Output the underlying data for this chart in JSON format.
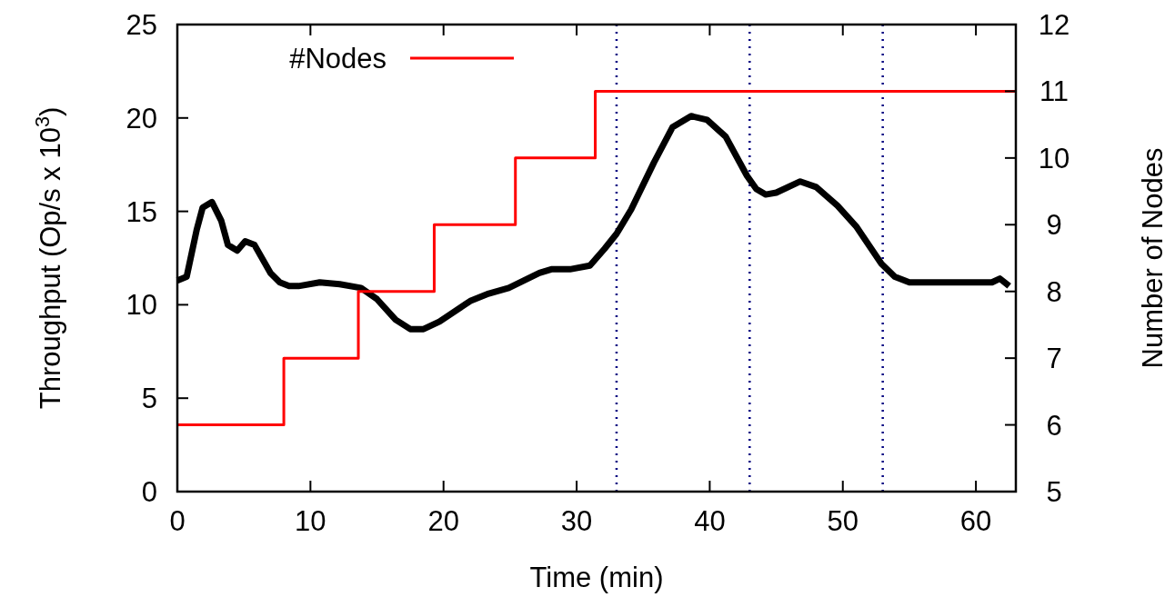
{
  "chart_data": {
    "type": "line",
    "xlabel": "Time (min)",
    "ylabel": "Throughput (Op/s x 10$^{3}$)",
    "y2label": "Number of Nodes",
    "xlim": [
      0,
      63
    ],
    "xticks": [
      0,
      10,
      20,
      30,
      40,
      50,
      60
    ],
    "ylim": [
      0,
      25
    ],
    "yticks": [
      0,
      5,
      10,
      15,
      20,
      25
    ],
    "y2lim": [
      5,
      12
    ],
    "y2ticks": [
      5,
      6,
      7,
      8,
      9,
      10,
      11,
      12
    ],
    "legend": "top left",
    "grid": false,
    "line_style": "solid",
    "marker": "none",
    "series": [
      {
        "color": "#000000",
        "x": [
          0,
          0.7,
          1.45,
          1.9,
          2.6,
          3.3,
          3.8,
          4.5,
          5.1,
          5.8,
          7,
          7.7,
          8.4,
          9.1,
          10.7,
          12.2,
          13.8,
          15,
          16.4,
          17.5,
          18.5,
          19.7,
          22,
          23.4,
          24.9,
          27.2,
          28.1,
          29.5,
          31,
          32.1,
          33,
          34.1,
          35.8,
          37.2,
          38.6,
          39.8,
          41.2,
          42.8,
          43.5,
          44.2,
          45,
          46.8,
          48,
          49.6,
          51,
          52.9,
          53.9,
          55,
          57.4,
          59.8,
          61.2,
          61.8,
          62.5
        ],
        "values": [
          11.3,
          11.5,
          14,
          15.2,
          15.5,
          14.5,
          13.2,
          12.9,
          13.4,
          13.2,
          11.7,
          11.2,
          11,
          11,
          11.2,
          11.1,
          10.9,
          10.3,
          9.2,
          8.7,
          8.7,
          9.1,
          10.2,
          10.6,
          10.9,
          11.7,
          11.9,
          11.9,
          12.1,
          13,
          13.8,
          15.1,
          17.6,
          19.5,
          20.1,
          19.9,
          19,
          16.9,
          16.2,
          15.9,
          16,
          16.6,
          16.3,
          15.3,
          14.2,
          12.2,
          11.5,
          11.2,
          11.2,
          11.2,
          11.2,
          11.4,
          11
        ]
      },
      {
        "type": "step",
        "name": "#Nodes",
        "color": "#ff0000",
        "axis": "y2",
        "x": [
          0,
          8,
          13.6,
          19.3,
          25.4,
          31.4,
          63
        ],
        "values": [
          6,
          7,
          8,
          9,
          10,
          11,
          11
        ]
      }
    ],
    "ref_lines": [
      {
        "axis": "x",
        "value": 33,
        "color": "#000080",
        "line_style": "dotted"
      },
      {
        "axis": "x",
        "value": 43,
        "color": "#000080",
        "line_style": "dotted"
      },
      {
        "axis": "x",
        "value": 53,
        "color": "#000080",
        "line_style": "dotted"
      }
    ]
  }
}
